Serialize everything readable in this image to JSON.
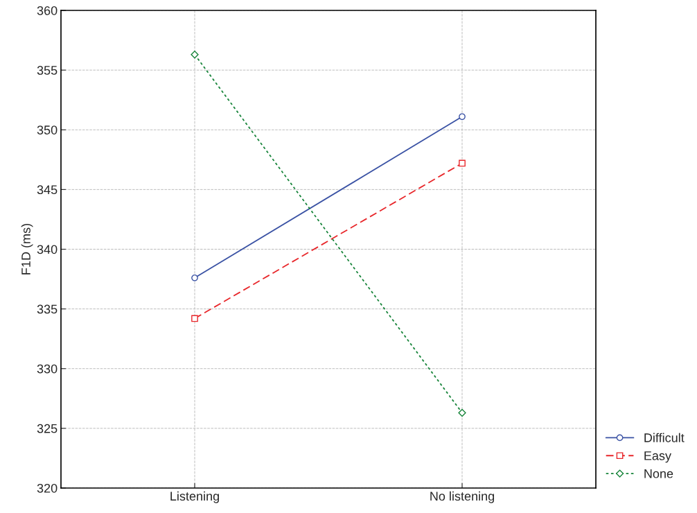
{
  "chart_data": {
    "type": "line",
    "ylabel": "F1D (ms)",
    "categories": [
      "Listening",
      "No listening"
    ],
    "ylim": [
      320,
      360
    ],
    "yticks": [
      320,
      325,
      330,
      335,
      340,
      345,
      350,
      355,
      360
    ],
    "grid": true,
    "legend": "bottom right",
    "series": [
      {
        "name": "Difficult",
        "color": "#3a52a4",
        "values": [
          337.6,
          351.1
        ],
        "marker": "circle",
        "line_style": "solid"
      },
      {
        "name": "Easy",
        "color": "#e8262a",
        "values": [
          334.2,
          347.2
        ],
        "marker": "square",
        "line_style": "dashed"
      },
      {
        "name": "None",
        "color": "#17843a",
        "values": [
          356.3,
          326.3
        ],
        "marker": "diamond",
        "line_style": "dotted"
      }
    ]
  }
}
